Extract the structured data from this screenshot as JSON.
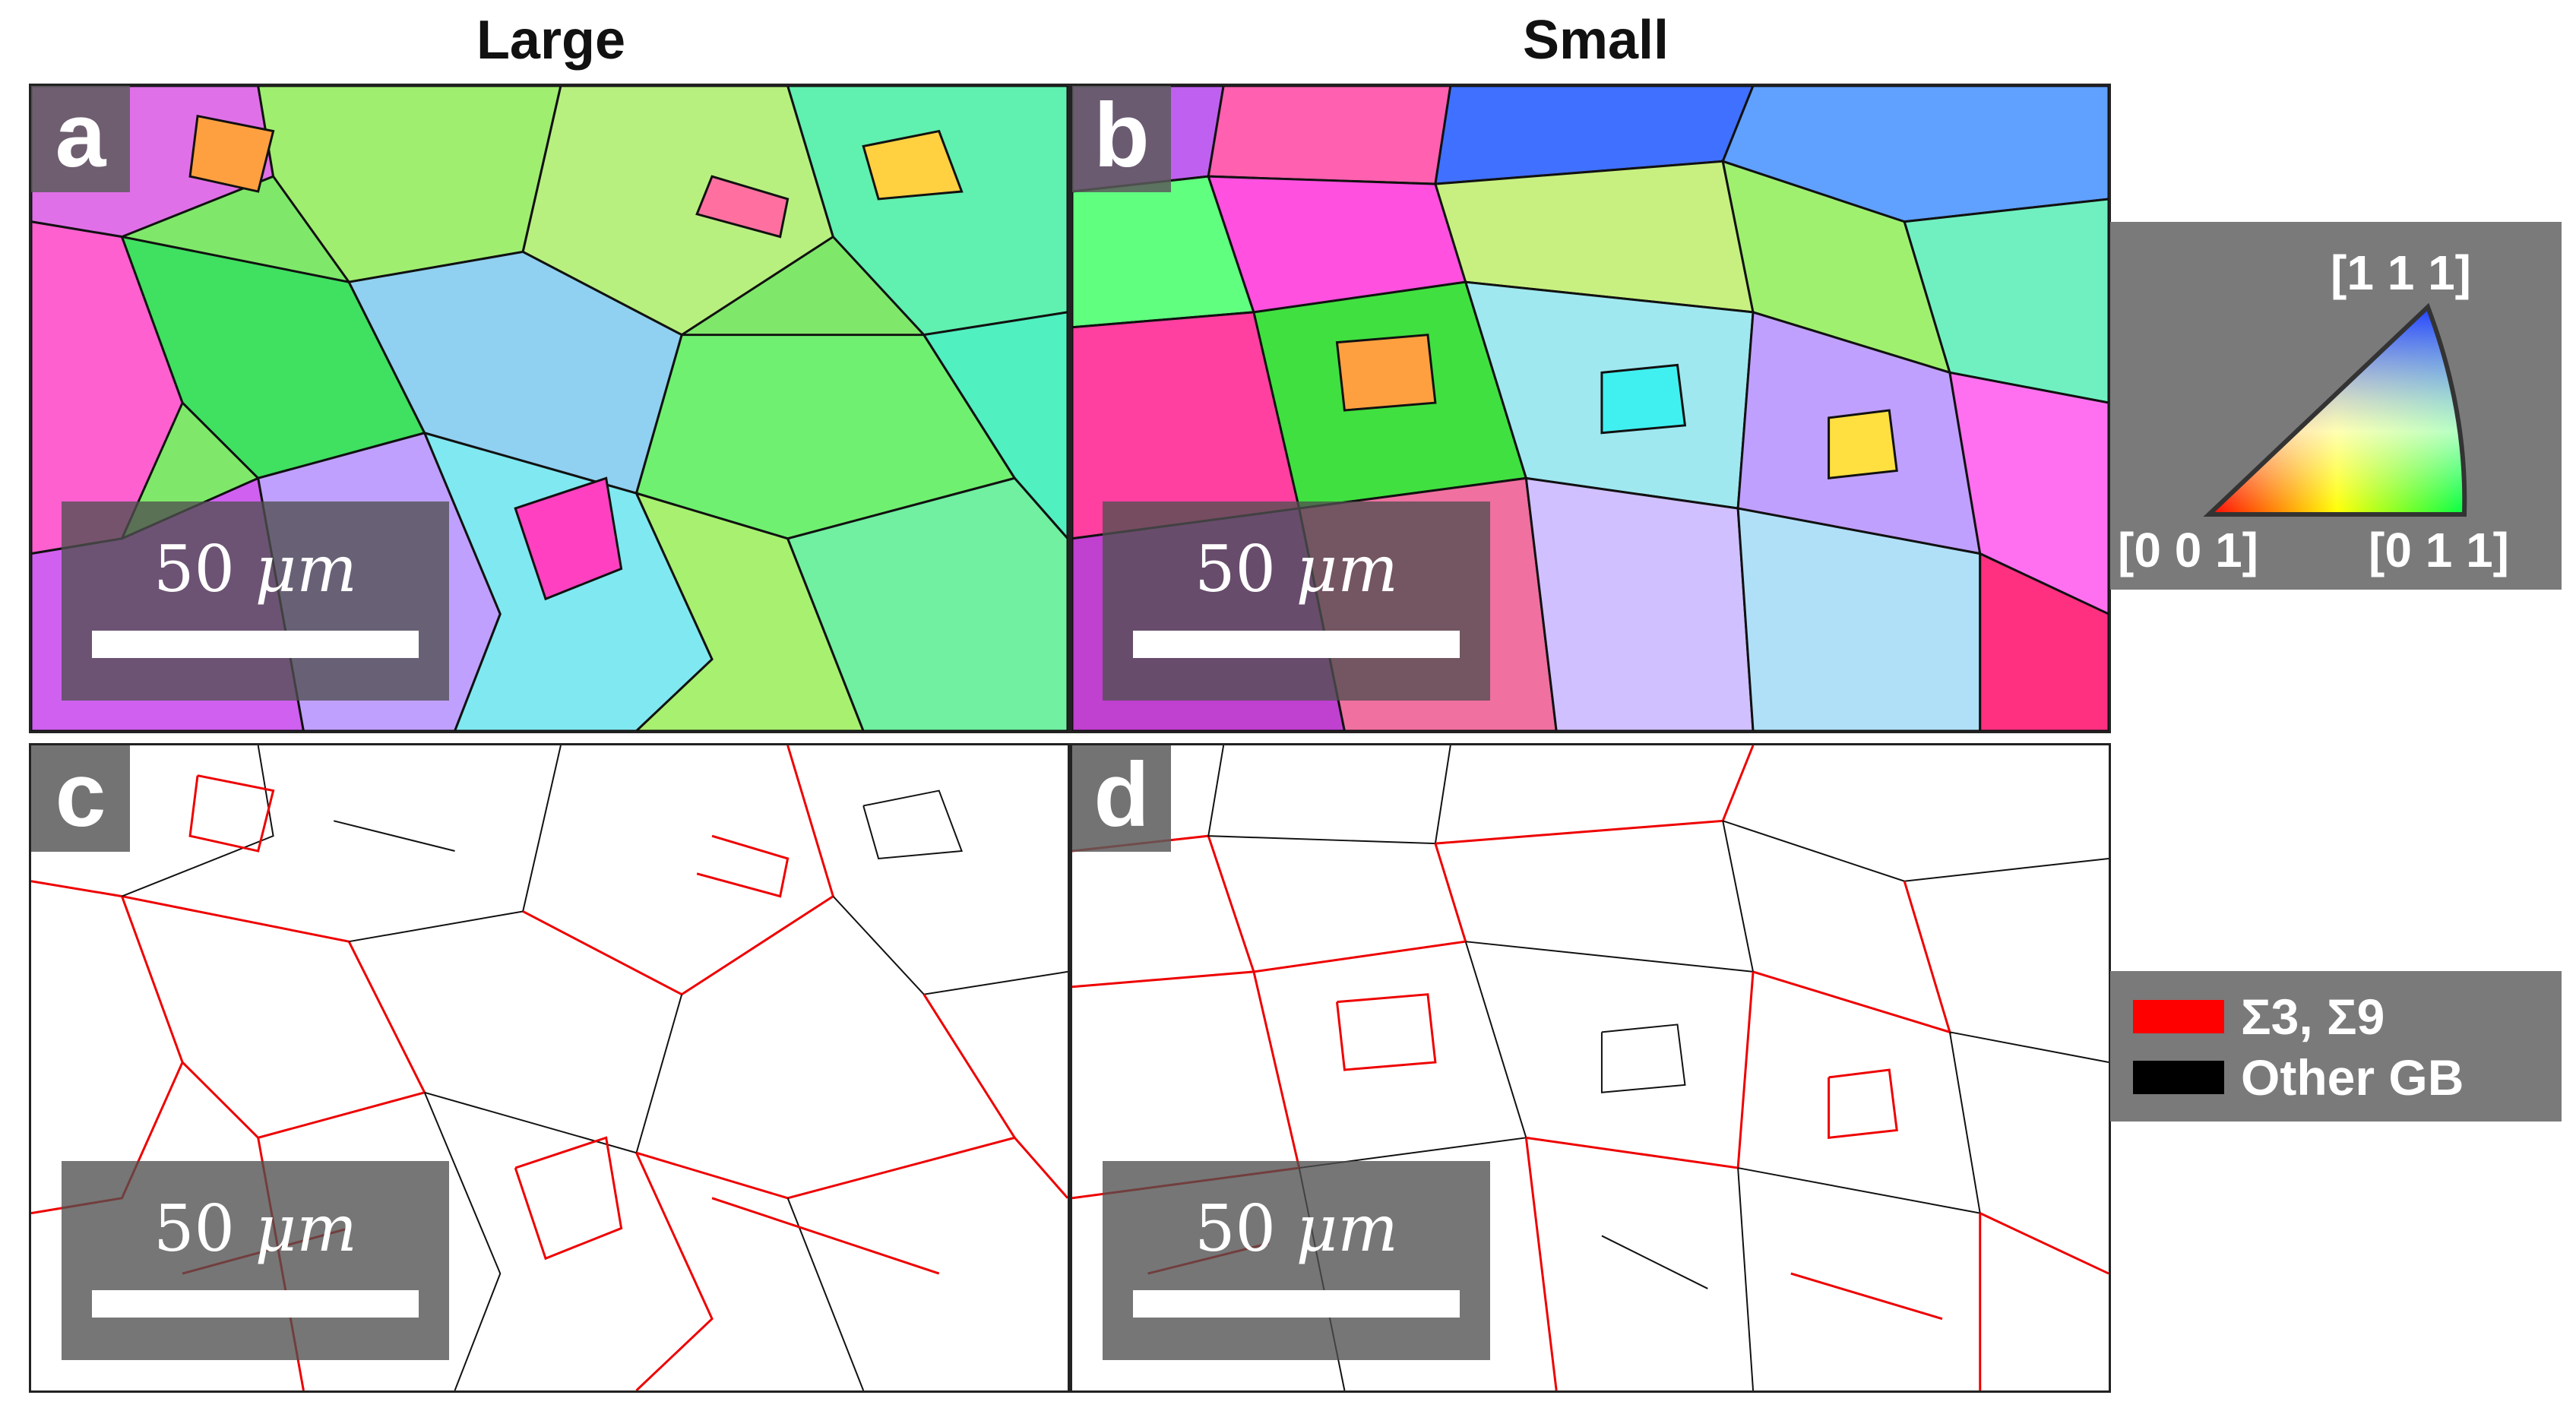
{
  "column_titles": {
    "left": "Large",
    "right": "Small"
  },
  "panels": [
    {
      "letter": "a",
      "type": "orientation-map"
    },
    {
      "letter": "b",
      "type": "orientation-map"
    },
    {
      "letter": "c",
      "type": "boundary-map"
    },
    {
      "letter": "d",
      "type": "boundary-map"
    }
  ],
  "scale_bar": {
    "value": "50",
    "unit": "μm"
  },
  "ipf_key": {
    "top": "[1 1 1]",
    "bottom_left": "[0 0 1]",
    "bottom_right": "[0 1 1]"
  },
  "boundary_legend": [
    {
      "label": "Σ3, Σ9",
      "color": "#ff0000"
    },
    {
      "label": "Other GB",
      "color": "#000000"
    }
  ]
}
